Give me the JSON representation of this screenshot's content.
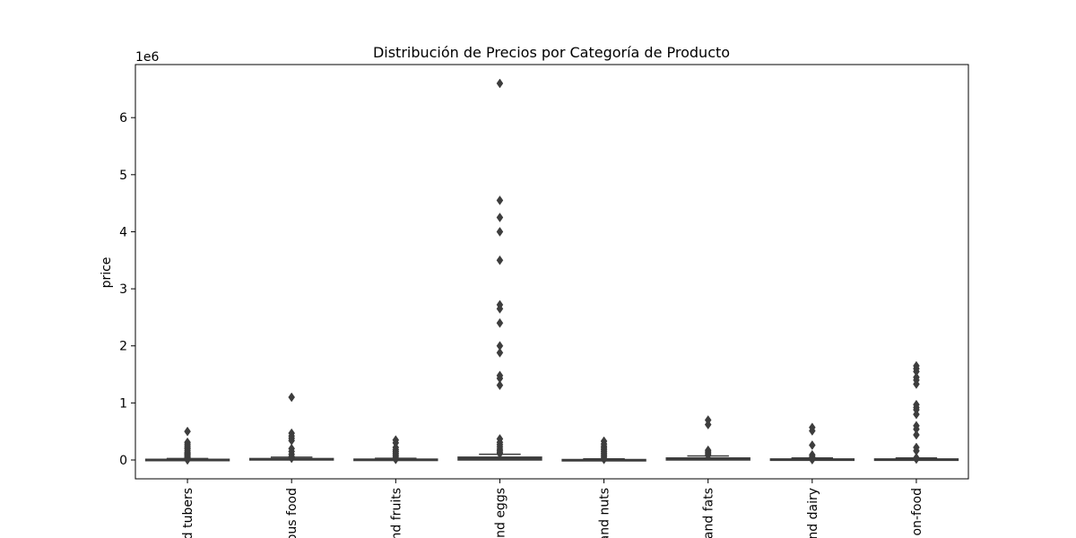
{
  "chart_data": {
    "type": "box",
    "title": "Distribución de Precios por Categoría de Producto",
    "xlabel": "",
    "ylabel": "price",
    "y_multiplier_label": "1e6",
    "ylim": [
      -330000,
      6930000
    ],
    "yticks": [
      0,
      1000000,
      2000000,
      3000000,
      4000000,
      5000000,
      6000000
    ],
    "ytick_labels": [
      "0",
      "1",
      "2",
      "3",
      "4",
      "5",
      "6"
    ],
    "categories": [
      "d tubers",
      "ous food",
      "nd fruits",
      "nd eggs",
      "and nuts",
      "and fats",
      "nd dairy",
      "on-food"
    ],
    "grid": false,
    "colors": {
      "box": "#3d3d3d",
      "marker": "#3d3d3d",
      "axis": "#000000"
    },
    "boxes": [
      {
        "category": "d tubers",
        "q1": 0,
        "median": 4000,
        "q3": 12000,
        "whisker_low": 0,
        "whisker_high": 25000,
        "outliers": [
          500000,
          310000,
          280000,
          250000,
          220000,
          200000,
          170000,
          140000,
          120000,
          100000,
          80000,
          60000,
          40000,
          20000,
          0
        ]
      },
      {
        "category": "ous food",
        "q1": 0,
        "median": 8000,
        "q3": 25000,
        "whisker_low": 0,
        "whisker_high": 50000,
        "outliers": [
          1100000,
          470000,
          420000,
          380000,
          340000,
          200000,
          150000,
          100000,
          60000,
          30000
        ]
      },
      {
        "category": "nd fruits",
        "q1": 0,
        "median": 4000,
        "q3": 15000,
        "whisker_low": 0,
        "whisker_high": 30000,
        "outliers": [
          350000,
          300000,
          220000,
          180000,
          150000,
          120000,
          90000,
          60000,
          30000,
          10000
        ]
      },
      {
        "category": "nd eggs",
        "q1": 0,
        "median": 20000,
        "q3": 50000,
        "whisker_low": 0,
        "whisker_high": 100000,
        "outliers": [
          6600000,
          4550000,
          4250000,
          4000000,
          3500000,
          2720000,
          2650000,
          2400000,
          2000000,
          1880000,
          1480000,
          1430000,
          1310000,
          370000,
          310000,
          270000,
          230000,
          190000,
          160000,
          130000,
          110000
        ]
      },
      {
        "category": "and nuts",
        "q1": 0,
        "median": 2000,
        "q3": 8000,
        "whisker_low": 0,
        "whisker_high": 20000,
        "outliers": [
          330000,
          280000,
          240000,
          210000,
          180000,
          150000,
          120000,
          90000,
          60000,
          30000,
          10000
        ]
      },
      {
        "category": "and fats",
        "q1": 0,
        "median": 15000,
        "q3": 35000,
        "whisker_low": 0,
        "whisker_high": 70000,
        "outliers": [
          700000,
          620000,
          170000,
          140000,
          110000,
          80000
        ]
      },
      {
        "category": "nd dairy",
        "q1": 0,
        "median": 6000,
        "q3": 18000,
        "whisker_low": 0,
        "whisker_high": 35000,
        "outliers": [
          570000,
          510000,
          260000,
          90000,
          60000,
          40000,
          20000,
          5000
        ]
      },
      {
        "category": "on-food",
        "q1": 0,
        "median": 5000,
        "q3": 18000,
        "whisker_low": 0,
        "whisker_high": 35000,
        "outliers": [
          1650000,
          1600000,
          1550000,
          1450000,
          1400000,
          1330000,
          970000,
          920000,
          880000,
          800000,
          600000,
          540000,
          440000,
          220000,
          160000,
          40000,
          15000
        ]
      }
    ]
  }
}
